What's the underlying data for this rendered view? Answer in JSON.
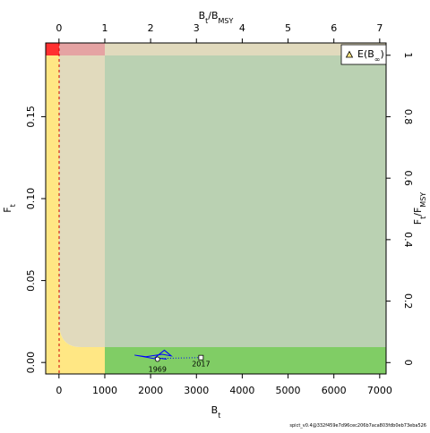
{
  "chart_data": {
    "type": "kobe",
    "xlabel": [
      {
        "text": "B"
      },
      {
        "text": "t",
        "sub": true
      }
    ],
    "ylabel": [
      {
        "text": "F"
      },
      {
        "text": "t",
        "sub": true
      }
    ],
    "x2label": [
      {
        "text": "B"
      },
      {
        "text": "t",
        "sub": true
      },
      {
        "text": "/B"
      },
      {
        "text": "MSY",
        "sub": true
      }
    ],
    "y2label": [
      {
        "text": "F"
      },
      {
        "text": "t",
        "sub": true
      },
      {
        "text": "/F"
      },
      {
        "text": "MSY",
        "sub": true
      }
    ],
    "xlim": [
      -290,
      7140
    ],
    "xticks": [
      0,
      1000,
      2000,
      3000,
      4000,
      5000,
      6000,
      7000
    ],
    "ylim": [
      -0.007,
      0.195
    ],
    "yticks": [
      {
        "value": 0,
        "label": "0.00"
      },
      {
        "value": 0.05,
        "label": "0.05"
      },
      {
        "value": 0.1,
        "label": "0.10"
      },
      {
        "value": 0.15,
        "label": "0.15"
      }
    ],
    "x2lim": [
      -0.29,
      7.14
    ],
    "x2ticks": [
      0,
      1,
      2,
      3,
      4,
      5,
      6,
      7
    ],
    "y2lim": [
      -0.037,
      1.04
    ],
    "y2ticks": [
      0,
      0.2,
      0.4,
      0.6,
      0.8,
      1
    ],
    "series": [
      {
        "color": "#0000ff",
        "x": [
          2150,
          1650,
          1900,
          2250,
          2450,
          2300,
          2100,
          2350,
          2250
        ],
        "values": [
          0.002,
          0.0045,
          0.0035,
          0.005,
          0.004,
          0.0075,
          0.003,
          0.002,
          0.0025
        ]
      }
    ],
    "projection": {
      "color": "#0000ff",
      "x": [
        2250,
        3100
      ],
      "values": [
        0.0025,
        0.003
      ]
    },
    "start_label": "1969",
    "end_label": "2017",
    "legend": [
      {
        "text": "E(B"
      },
      {
        "text": "∞",
        "sub": true
      },
      {
        "text": ")"
      }
    ],
    "footer": "spict_v0.4@332f459e7d96cec206b7aca803fdb0eb73eba526"
  }
}
